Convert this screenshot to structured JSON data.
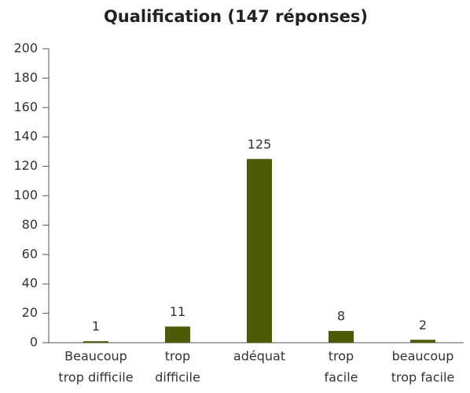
{
  "chart_data": {
    "type": "bar",
    "title": "Qualification (147 réponses)",
    "categories": [
      [
        "Beaucoup",
        "trop difficile"
      ],
      [
        "trop",
        "difficile"
      ],
      [
        "adéquat"
      ],
      [
        "trop",
        "facile"
      ],
      [
        "beaucoup",
        "trop facile"
      ]
    ],
    "values": [
      1,
      11,
      125,
      8,
      2
    ],
    "color": "#4d5a06",
    "ylim": [
      0,
      200
    ],
    "yticks": [
      0,
      20,
      40,
      60,
      80,
      100,
      120,
      140,
      160,
      180,
      200
    ]
  }
}
